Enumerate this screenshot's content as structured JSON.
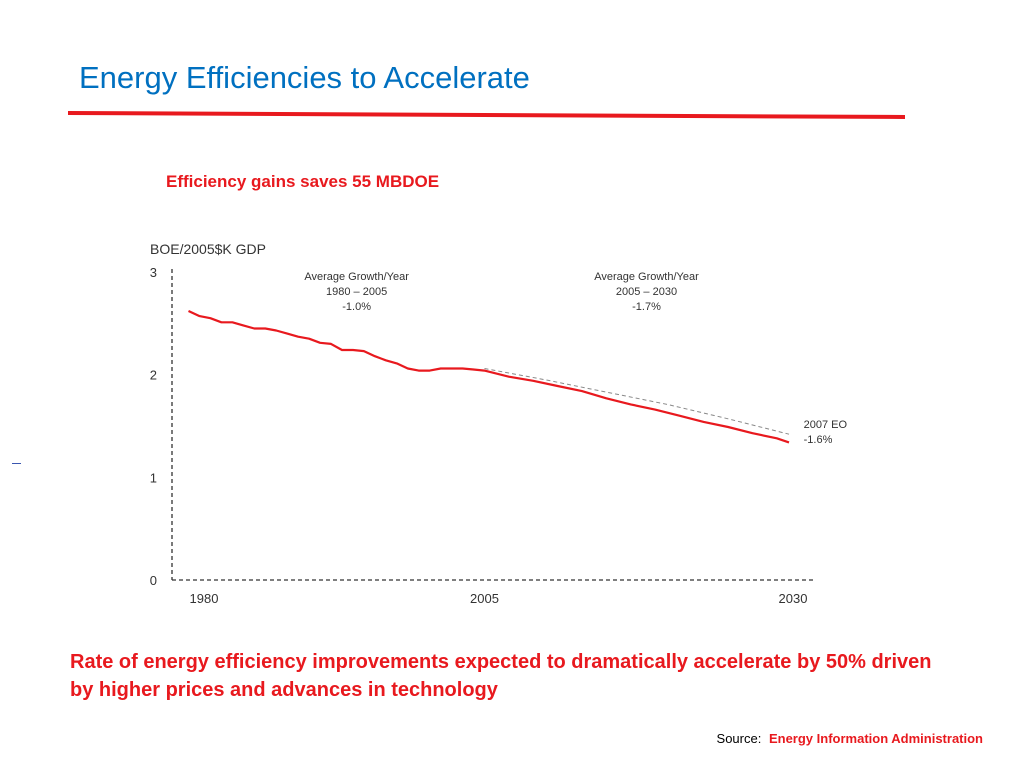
{
  "slide": {
    "title": "Energy Efficiencies to Accelerate",
    "subtitle": "Efficiency gains saves 55 MBDOE",
    "caption": "Rate of energy efficiency improvements expected to dramatically accelerate by 50% driven by higher prices and advances in technology",
    "source_label": "Source:",
    "source_name": "Energy Information Administration"
  },
  "colors": {
    "title": "#0070c0",
    "accent_red": "#e8191e",
    "rule_red": "#e8191e",
    "dashed_line": "#888888",
    "axis": "#333333"
  },
  "chart_data": {
    "type": "line",
    "title": "",
    "ylabel": "BOE/2005$K GDP",
    "xlabel": "",
    "xlim": [
      1980,
      2030
    ],
    "ylim": [
      0,
      3
    ],
    "x_ticks": [
      "1980",
      "2005",
      "2030"
    ],
    "y_ticks": [
      "0",
      "1",
      "2",
      "3"
    ],
    "grid": false,
    "annotations": [
      {
        "lines": [
          "Average Growth/Year",
          "1980 – 2005",
          "-1.0%"
        ],
        "anchor_x": 1994.5,
        "anchor_y": 2.92
      },
      {
        "lines": [
          "Average Growth/Year",
          "2005 – 2030",
          "-1.7%"
        ],
        "anchor_x": 2018.3,
        "anchor_y": 2.92
      },
      {
        "lines": [
          "2007 EO",
          "-1.6%"
        ],
        "anchor_x": 2031.2,
        "anchor_y": 1.48
      }
    ],
    "series": [
      {
        "style": "solid",
        "color": "#e8191e",
        "x": [
          1980.7,
          1981.6,
          1982.5,
          1983.4,
          1984.3,
          1985.2,
          1986.1,
          1987.0,
          1987.9,
          1988.8,
          1989.7,
          1990.6,
          1991.5,
          1992.4,
          1993.3,
          1994.2,
          1995.1,
          1996.0,
          1996.9,
          1997.8,
          1998.7,
          1999.6,
          2000.5,
          2001.4,
          2002.3,
          2003.2,
          2004.1,
          2005.0,
          2007.0,
          2009.0,
          2011.0,
          2013.0,
          2015.0,
          2017.0,
          2019.0,
          2021.0,
          2023.0,
          2025.0,
          2027.0,
          2029.0,
          2030.0
        ],
        "y": [
          2.62,
          2.57,
          2.55,
          2.51,
          2.51,
          2.48,
          2.45,
          2.45,
          2.43,
          2.4,
          2.37,
          2.35,
          2.31,
          2.3,
          2.24,
          2.24,
          2.23,
          2.18,
          2.14,
          2.11,
          2.06,
          2.04,
          2.04,
          2.06,
          2.06,
          2.06,
          2.05,
          2.04,
          1.98,
          1.94,
          1.89,
          1.84,
          1.77,
          1.71,
          1.66,
          1.6,
          1.54,
          1.49,
          1.43,
          1.38,
          1.34
        ]
      },
      {
        "style": "dashed",
        "color": "#888888",
        "x": [
          2005,
          2010,
          2015,
          2020,
          2025,
          2030
        ],
        "y": [
          2.06,
          1.95,
          1.83,
          1.71,
          1.57,
          1.42
        ]
      }
    ]
  }
}
